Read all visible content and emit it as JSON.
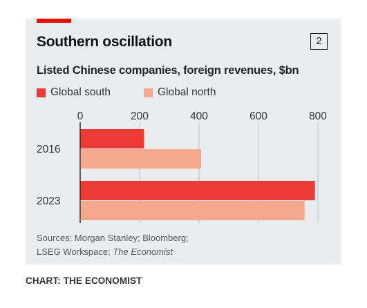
{
  "title": "Southern oscillation",
  "chart_number": "2",
  "subtitle": "Listed Chinese companies, foreign revenues, $bn",
  "sources_line1": "Sources: Morgan Stanley; Bloomberg;",
  "sources_line2_prefix": "LSEG Workspace; ",
  "sources_line2_em": "The Economist",
  "credit": "CHART: THE ECONOMIST",
  "colors": {
    "accent": "#e3120b",
    "global_south": "#ee3a35",
    "global_north": "#f5a88e",
    "panel": "#e9edf0"
  },
  "chart_data": {
    "type": "bar",
    "orientation": "horizontal",
    "categories": [
      "2016",
      "2023"
    ],
    "series": [
      {
        "name": "Global south",
        "values": [
          215,
          790
        ]
      },
      {
        "name": "Global north",
        "values": [
          407,
          755
        ]
      }
    ],
    "xlim": [
      0,
      800
    ],
    "xticks": [
      0,
      200,
      400,
      600,
      800
    ],
    "tick_labels": [
      "0",
      "200",
      "400",
      "600",
      "800"
    ],
    "grid": true,
    "legend_placement": "top-left"
  }
}
